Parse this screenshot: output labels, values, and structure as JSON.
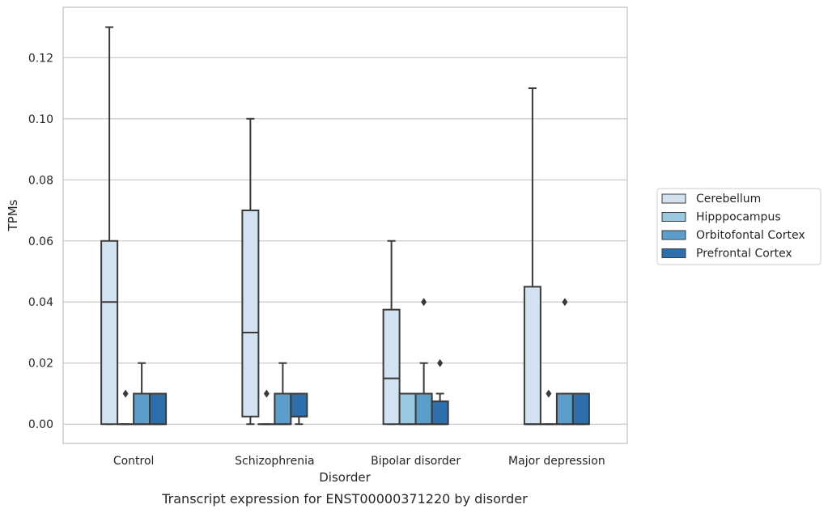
{
  "chart_data": {
    "type": "box",
    "caption": "Transcript expression for ENST00000371220 by disorder",
    "xlabel": "Disorder",
    "ylabel": "TPMs",
    "ylim": [
      -0.0063,
      0.1365
    ],
    "yticks": [
      0.0,
      0.02,
      0.04,
      0.06,
      0.08,
      0.1,
      0.12
    ],
    "ytick_labels": [
      "0.00",
      "0.02",
      "0.04",
      "0.06",
      "0.08",
      "0.10",
      "0.12"
    ],
    "grid": "horizontal",
    "legend_position": "right",
    "categories": [
      "Control",
      "Schizophrenia",
      "Bipolar disorder",
      "Major depression"
    ],
    "series": [
      {
        "name": "Cerebellum",
        "color": "#d3e2f1",
        "boxes": [
          {
            "q1": 0.0,
            "median": 0.04,
            "q3": 0.06,
            "whisker_low": 0.0,
            "whisker_high": 0.13,
            "outliers": []
          },
          {
            "q1": 0.0025,
            "median": 0.03,
            "q3": 0.07,
            "whisker_low": 0.0,
            "whisker_high": 0.1,
            "outliers": []
          },
          {
            "q1": 0.0,
            "median": 0.015,
            "q3": 0.0375,
            "whisker_low": 0.0,
            "whisker_high": 0.06,
            "outliers": []
          },
          {
            "q1": 0.0,
            "median": 0.0,
            "q3": 0.045,
            "whisker_low": 0.0,
            "whisker_high": 0.11,
            "outliers": []
          }
        ]
      },
      {
        "name": "Hipppocampus",
        "color": "#9ac8e0",
        "boxes": [
          {
            "q1": 0.0,
            "median": 0.0,
            "q3": 0.0,
            "whisker_low": 0.0,
            "whisker_high": 0.0,
            "outliers": [
              0.01
            ]
          },
          {
            "q1": 0.0,
            "median": 0.0,
            "q3": 0.0,
            "whisker_low": 0.0,
            "whisker_high": 0.0,
            "outliers": [
              0.01
            ]
          },
          {
            "q1": 0.0,
            "median": 0.0,
            "q3": 0.01,
            "whisker_low": 0.0,
            "whisker_high": 0.01,
            "outliers": []
          },
          {
            "q1": 0.0,
            "median": 0.0,
            "q3": 0.0,
            "whisker_low": 0.0,
            "whisker_high": 0.0,
            "outliers": [
              0.01
            ]
          }
        ]
      },
      {
        "name": "Orbitofontal Cortex",
        "color": "#5a9ec9",
        "boxes": [
          {
            "q1": 0.0,
            "median": 0.0,
            "q3": 0.01,
            "whisker_low": 0.0,
            "whisker_high": 0.02,
            "outliers": []
          },
          {
            "q1": 0.0,
            "median": 0.0,
            "q3": 0.01,
            "whisker_low": 0.0,
            "whisker_high": 0.02,
            "outliers": []
          },
          {
            "q1": 0.0,
            "median": 0.0,
            "q3": 0.01,
            "whisker_low": 0.0,
            "whisker_high": 0.02,
            "outliers": [
              0.04
            ]
          },
          {
            "q1": 0.0,
            "median": 0.0,
            "q3": 0.01,
            "whisker_low": 0.0,
            "whisker_high": 0.01,
            "outliers": [
              0.04
            ]
          }
        ]
      },
      {
        "name": "Prefrontal Cortex",
        "color": "#2d6fad",
        "boxes": [
          {
            "q1": 0.0,
            "median": 0.0,
            "q3": 0.01,
            "whisker_low": 0.0,
            "whisker_high": 0.01,
            "outliers": []
          },
          {
            "q1": 0.0025,
            "median": 0.0025,
            "q3": 0.01,
            "whisker_low": 0.0,
            "whisker_high": 0.01,
            "outliers": []
          },
          {
            "q1": 0.0,
            "median": 0.0,
            "q3": 0.0075,
            "whisker_low": 0.0,
            "whisker_high": 0.01,
            "outliers": [
              0.02
            ]
          },
          {
            "q1": 0.0,
            "median": 0.0,
            "q3": 0.01,
            "whisker_low": 0.0,
            "whisker_high": 0.01,
            "outliers": []
          }
        ]
      }
    ]
  }
}
